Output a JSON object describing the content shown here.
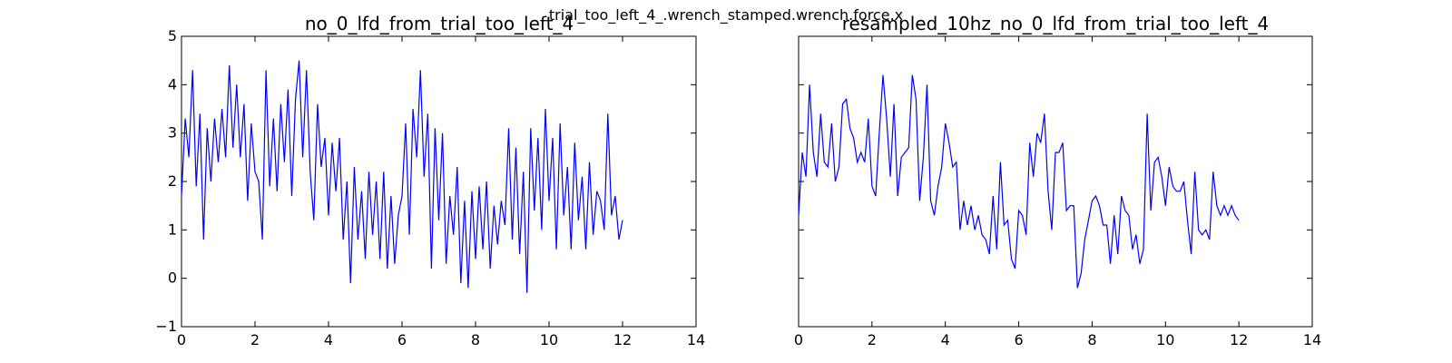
{
  "figure": {
    "suptitle": "trial_too_left_4_.wrench_stamped.wrench.force.x"
  },
  "chart_data": [
    {
      "type": "line",
      "title": "no_0_lfd_from_trial_too_left_4",
      "xlabel": "",
      "ylabel": "",
      "xlim": [
        0,
        14
      ],
      "ylim": [
        -1,
        5
      ],
      "xticks": [
        0,
        2,
        4,
        6,
        8,
        10,
        12,
        14
      ],
      "yticks": [
        -1,
        0,
        1,
        2,
        3,
        4,
        5
      ],
      "grid": false,
      "series": [
        {
          "color": "#0000ff",
          "x": [
            0.0,
            0.1,
            0.2,
            0.3,
            0.4,
            0.5,
            0.6,
            0.7,
            0.8,
            0.9,
            1.0,
            1.1,
            1.2,
            1.3,
            1.4,
            1.5,
            1.6,
            1.7,
            1.8,
            1.9,
            2.0,
            2.1,
            2.2,
            2.3,
            2.4,
            2.5,
            2.6,
            2.7,
            2.8,
            2.9,
            3.0,
            3.1,
            3.2,
            3.3,
            3.4,
            3.5,
            3.6,
            3.7,
            3.8,
            3.9,
            4.0,
            4.1,
            4.2,
            4.3,
            4.4,
            4.5,
            4.6,
            4.7,
            4.8,
            4.9,
            5.0,
            5.1,
            5.2,
            5.3,
            5.4,
            5.5,
            5.6,
            5.7,
            5.8,
            5.9,
            6.0,
            6.1,
            6.2,
            6.3,
            6.4,
            6.5,
            6.6,
            6.7,
            6.8,
            6.9,
            7.0,
            7.1,
            7.2,
            7.3,
            7.4,
            7.5,
            7.6,
            7.7,
            7.8,
            7.9,
            8.0,
            8.1,
            8.2,
            8.3,
            8.4,
            8.5,
            8.6,
            8.7,
            8.8,
            8.9,
            9.0,
            9.1,
            9.2,
            9.3,
            9.4,
            9.5,
            9.6,
            9.7,
            9.8,
            9.9,
            10.0,
            10.1,
            10.2,
            10.3,
            10.4,
            10.5,
            10.6,
            10.7,
            10.8,
            10.9,
            11.0,
            11.1,
            11.2,
            11.3,
            11.4,
            11.5,
            11.6,
            11.7,
            11.8,
            11.9,
            12.0
          ],
          "y": [
            1.7,
            3.3,
            2.5,
            4.3,
            1.9,
            3.4,
            0.8,
            3.1,
            2.0,
            3.3,
            2.4,
            3.5,
            2.5,
            4.4,
            2.7,
            4.0,
            2.5,
            3.6,
            1.6,
            3.2,
            2.2,
            2.0,
            0.8,
            4.3,
            1.9,
            3.3,
            1.8,
            3.6,
            2.4,
            3.9,
            1.7,
            3.7,
            4.5,
            2.5,
            4.3,
            2.2,
            1.2,
            3.6,
            2.3,
            2.9,
            1.3,
            2.8,
            1.8,
            2.9,
            0.8,
            2.0,
            -0.1,
            2.3,
            0.8,
            1.8,
            0.4,
            2.2,
            0.9,
            2.0,
            0.4,
            2.2,
            0.2,
            1.7,
            0.3,
            1.3,
            1.7,
            3.2,
            0.9,
            3.5,
            2.5,
            4.3,
            2.1,
            3.4,
            0.2,
            3.1,
            1.2,
            3.0,
            0.3,
            1.7,
            0.9,
            2.3,
            -0.1,
            1.6,
            -0.2,
            1.8,
            0.4,
            1.9,
            0.6,
            2.0,
            0.2,
            1.5,
            0.7,
            1.6,
            1.1,
            3.1,
            0.8,
            2.7,
            0.5,
            2.2,
            -0.3,
            3.1,
            1.4,
            2.9,
            1.0,
            3.5,
            1.6,
            2.9,
            0.6,
            3.2,
            1.3,
            2.3,
            0.6,
            2.8,
            1.2,
            2.1,
            0.6,
            2.4,
            0.9,
            1.8,
            1.6,
            1.0,
            3.4,
            1.3,
            1.7,
            0.8,
            1.2
          ]
        }
      ]
    },
    {
      "type": "line",
      "title": "resampled_10hz_no_0_lfd_from_trial_too_left_4",
      "xlabel": "",
      "ylabel": "",
      "xlim": [
        0,
        14
      ],
      "ylim": [
        -1,
        5
      ],
      "xticks": [
        0,
        2,
        4,
        6,
        8,
        10,
        12,
        14
      ],
      "yticks": [],
      "grid": false,
      "series": [
        {
          "color": "#0000ff",
          "x": [
            0.0,
            0.1,
            0.2,
            0.3,
            0.4,
            0.5,
            0.6,
            0.7,
            0.8,
            0.9,
            1.0,
            1.1,
            1.2,
            1.3,
            1.4,
            1.5,
            1.6,
            1.7,
            1.8,
            1.9,
            2.0,
            2.1,
            2.2,
            2.3,
            2.4,
            2.5,
            2.6,
            2.7,
            2.8,
            2.9,
            3.0,
            3.1,
            3.2,
            3.3,
            3.4,
            3.5,
            3.6,
            3.7,
            3.8,
            3.9,
            4.0,
            4.1,
            4.2,
            4.3,
            4.4,
            4.5,
            4.6,
            4.7,
            4.8,
            4.9,
            5.0,
            5.1,
            5.2,
            5.3,
            5.4,
            5.5,
            5.6,
            5.7,
            5.8,
            5.9,
            6.0,
            6.1,
            6.2,
            6.3,
            6.4,
            6.5,
            6.6,
            6.7,
            6.8,
            6.9,
            7.0,
            7.1,
            7.2,
            7.3,
            7.4,
            7.5,
            7.6,
            7.7,
            7.8,
            7.9,
            8.0,
            8.1,
            8.2,
            8.3,
            8.4,
            8.5,
            8.6,
            8.7,
            8.8,
            8.9,
            9.0,
            9.1,
            9.2,
            9.3,
            9.4,
            9.5,
            9.6,
            9.7,
            9.8,
            9.9,
            10.0,
            10.1,
            10.2,
            10.3,
            10.4,
            10.5,
            10.6,
            10.7,
            10.8,
            10.9,
            11.0,
            11.1,
            11.2,
            11.3,
            11.4,
            11.5,
            11.6,
            11.7,
            11.8,
            11.9,
            12.0
          ],
          "y": [
            1.3,
            2.6,
            2.1,
            4.0,
            2.6,
            2.1,
            3.4,
            2.4,
            2.3,
            3.2,
            2.0,
            2.3,
            3.6,
            3.7,
            3.1,
            2.9,
            2.4,
            2.6,
            2.4,
            3.3,
            1.9,
            1.7,
            3.0,
            4.2,
            3.3,
            2.1,
            3.6,
            1.7,
            2.5,
            2.6,
            2.7,
            4.2,
            3.7,
            1.6,
            2.5,
            4.0,
            1.6,
            1.3,
            1.9,
            2.3,
            3.2,
            2.8,
            2.3,
            2.4,
            1.0,
            1.6,
            1.1,
            1.5,
            1.0,
            1.3,
            0.9,
            0.8,
            0.5,
            1.7,
            0.6,
            2.4,
            1.1,
            1.2,
            0.4,
            0.2,
            1.4,
            1.3,
            0.9,
            2.8,
            2.1,
            3.0,
            2.8,
            3.4,
            1.8,
            1.0,
            2.6,
            2.6,
            2.8,
            1.4,
            1.5,
            1.5,
            -0.2,
            0.1,
            0.8,
            1.2,
            1.6,
            1.7,
            1.5,
            1.1,
            1.1,
            0.3,
            1.3,
            0.5,
            1.7,
            1.4,
            1.3,
            0.6,
            0.9,
            0.3,
            0.6,
            3.4,
            1.4,
            2.4,
            2.5,
            2.1,
            1.5,
            2.3,
            1.9,
            1.8,
            1.8,
            2.0,
            1.2,
            0.5,
            2.2,
            1.0,
            0.9,
            1.0,
            0.8,
            2.2,
            1.5,
            1.3,
            1.5,
            1.3,
            1.5,
            1.3,
            1.2
          ]
        }
      ]
    }
  ]
}
